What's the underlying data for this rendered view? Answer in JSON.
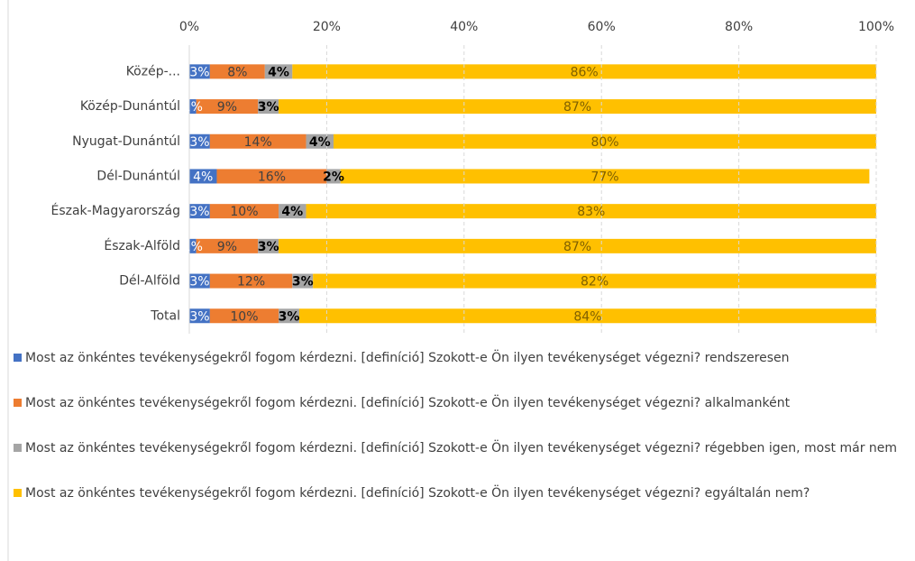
{
  "chart_data": {
    "type": "stacked_bar_horizontal",
    "categories": [
      "Közép-...",
      "Közép-Dunántúl",
      "Nyugat-Dunántúl",
      "Dél-Dunántúl",
      "Észak-Magyarország",
      "Észak-Alföld",
      "Dél-Alföld",
      "Total"
    ],
    "series": [
      {
        "name": "Most az önkéntes tevékenységekről fogom kérdezni. [definíció] Szokott-e Ön ilyen tevékenységet végezni? rendszeresen",
        "color": "#4472c4",
        "values": [
          3,
          1,
          3,
          4,
          3,
          1,
          3,
          3
        ],
        "value_labels": [
          "3%",
          "1%",
          "3%",
          "4%",
          "3%",
          "1%",
          "3%",
          "3%"
        ]
      },
      {
        "name": "Most az önkéntes tevékenységekről fogom kérdezni. [definíció] Szokott-e Ön ilyen tevékenységet végezni? alkalmanként",
        "color": "#ed7d31",
        "values": [
          8,
          9,
          14,
          16,
          10,
          9,
          12,
          10
        ],
        "value_labels": [
          "8%",
          "9%",
          "14%",
          "16%",
          "10%",
          "9%",
          "12%",
          "10%"
        ]
      },
      {
        "name": "Most az önkéntes tevékenységekről fogom kérdezni. [definíció] Szokott-e Ön ilyen tevékenységet végezni? régebben igen, most már nem",
        "color": "#a5a5a5",
        "values": [
          4,
          3,
          4,
          2,
          4,
          3,
          3,
          3
        ],
        "value_labels": [
          "4%",
          "3%",
          "4%",
          "2%",
          "4%",
          "3%",
          "3%",
          "3%"
        ]
      },
      {
        "name": "Most az önkéntes tevékenységekről fogom kérdezni. [definíció] Szokott-e Ön ilyen tevékenységet végezni? egyáltalán nem?",
        "color": "#ffc000",
        "values": [
          86,
          87,
          80,
          77,
          83,
          87,
          82,
          84
        ],
        "value_labels": [
          "86%",
          "87%",
          "80%",
          "77%",
          "83%",
          "87%",
          "82%",
          "84%"
        ]
      }
    ],
    "xlim": [
      0,
      100
    ],
    "xticks": [
      {
        "value": 0,
        "label": "0%"
      },
      {
        "value": 20,
        "label": "20%"
      },
      {
        "value": 40,
        "label": "40%"
      },
      {
        "value": 60,
        "label": "60%"
      },
      {
        "value": 80,
        "label": "80%"
      },
      {
        "value": 100,
        "label": "100%"
      }
    ],
    "grid": true,
    "legend": "bottom"
  }
}
